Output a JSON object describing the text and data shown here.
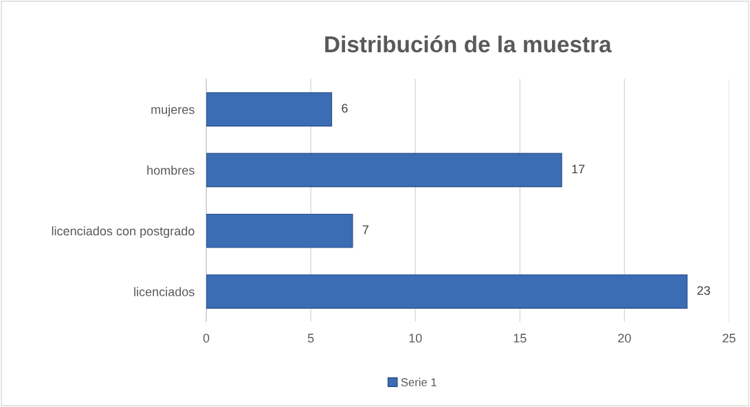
{
  "chart_data": {
    "type": "bar",
    "orientation": "horizontal",
    "title": "Distribución de la muestra",
    "categories": [
      "mujeres",
      "hombres",
      "licenciados con postgrado",
      "licenciados"
    ],
    "series": [
      {
        "name": "Serie 1",
        "color": "#3b6db5",
        "values": [
          6,
          17,
          7,
          23
        ]
      }
    ],
    "xlim": [
      0,
      25
    ],
    "xticks": [
      0,
      5,
      10,
      15,
      20,
      25
    ],
    "grid": "x",
    "legend": "bottom",
    "data_labels": true
  }
}
